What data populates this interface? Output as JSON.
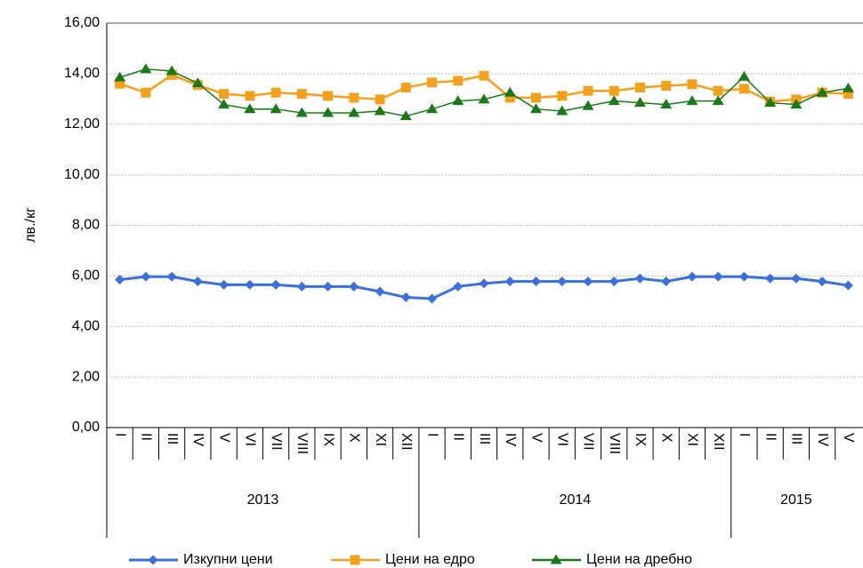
{
  "chart_data": {
    "type": "line",
    "y_label": "лв./кг",
    "category_groups": [
      {
        "label": "2013",
        "categories": [
          "I",
          "II",
          "III",
          "IV",
          "V",
          "VI",
          "VII",
          "VIII",
          "IX",
          "X",
          "XI",
          "XII"
        ]
      },
      {
        "label": "2014",
        "categories": [
          "I",
          "II",
          "III",
          "IV",
          "V",
          "VI",
          "VII",
          "VIII",
          "IX",
          "X",
          "XI",
          "XII"
        ]
      },
      {
        "label": "2015",
        "categories": [
          "I",
          "II",
          "III",
          "IV",
          "V"
        ]
      }
    ],
    "series": [
      {
        "name": "Изкупни цени",
        "color": "#3a6fe0",
        "marker": "diamond",
        "values": [
          5.85,
          5.97,
          5.97,
          5.78,
          5.65,
          5.65,
          5.65,
          5.58,
          5.58,
          5.58,
          5.38,
          5.15,
          5.1,
          5.58,
          5.7,
          5.78,
          5.78,
          5.78,
          5.78,
          5.78,
          5.9,
          5.78,
          5.97,
          5.97,
          5.97,
          5.9,
          5.9,
          5.78,
          5.62
        ]
      },
      {
        "name": "Цени на едро",
        "color": "#f5a01a",
        "marker": "square",
        "values": [
          13.6,
          13.25,
          13.95,
          13.55,
          13.2,
          13.12,
          13.25,
          13.2,
          13.12,
          13.05,
          12.98,
          13.45,
          13.65,
          13.72,
          13.92,
          13.05,
          13.05,
          13.12,
          13.32,
          13.32,
          13.45,
          13.52,
          13.58,
          13.32,
          13.4,
          12.9,
          12.98,
          13.25,
          13.2
        ]
      },
      {
        "name": "Цени на дребно",
        "color": "#1a7a1a",
        "marker": "triangle",
        "values": [
          13.85,
          14.18,
          14.1,
          13.62,
          12.78,
          12.6,
          12.6,
          12.45,
          12.45,
          12.45,
          12.52,
          12.32,
          12.6,
          12.92,
          12.98,
          13.25,
          12.6,
          12.52,
          12.72,
          12.92,
          12.85,
          12.78,
          12.92,
          12.92,
          13.88,
          12.85,
          12.78,
          13.25,
          13.42
        ]
      }
    ],
    "ylim": [
      0,
      16
    ],
    "yticks": [
      {
        "value": 0,
        "label": "0,00"
      },
      {
        "value": 2,
        "label": "2,00"
      },
      {
        "value": 4,
        "label": "4,00"
      },
      {
        "value": 6,
        "label": "6,00"
      },
      {
        "value": 8,
        "label": "8,00"
      },
      {
        "value": 10,
        "label": "10,00"
      },
      {
        "value": 12,
        "label": "12,00"
      },
      {
        "value": 14,
        "label": "14,00"
      },
      {
        "value": 16,
        "label": "16,00"
      }
    ],
    "grid": true,
    "legend": "bottom"
  }
}
